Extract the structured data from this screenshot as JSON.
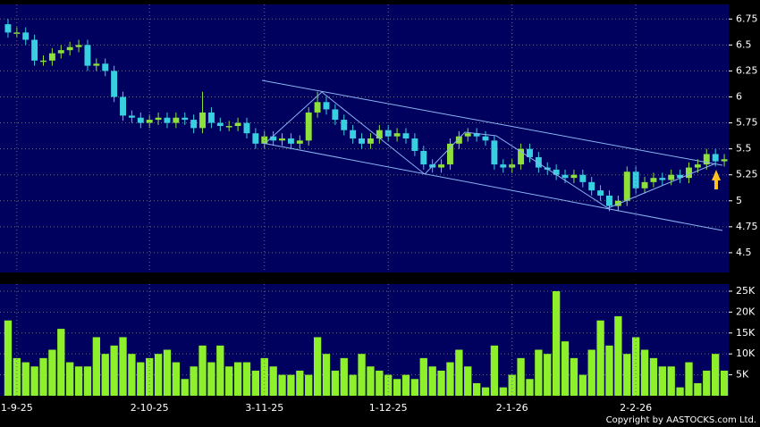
{
  "chart_data": [
    {
      "type": "candlestick",
      "up_color": "#8ee03a",
      "down_color": "#38d0e0",
      "ylim": [
        4.31,
        6.89
      ],
      "yticks": [
        4.5,
        4.75,
        5,
        5.25,
        5.5,
        5.75,
        6,
        6.25,
        6.5,
        6.75
      ],
      "grid": true,
      "open": [
        6.7,
        6.62,
        6.62,
        6.55,
        6.35,
        6.35,
        6.42,
        6.45,
        6.48,
        6.5,
        6.3,
        6.32,
        6.25,
        6.0,
        5.82,
        5.8,
        5.75,
        5.78,
        5.8,
        5.75,
        5.8,
        5.78,
        5.7,
        5.85,
        5.75,
        5.72,
        5.72,
        5.75,
        5.65,
        5.55,
        5.62,
        5.58,
        5.6,
        5.55,
        5.58,
        5.85,
        5.95,
        5.88,
        5.78,
        5.68,
        5.6,
        5.55,
        5.6,
        5.68,
        5.62,
        5.65,
        5.6,
        5.48,
        5.35,
        5.32,
        5.35,
        5.55,
        5.62,
        5.65,
        5.62,
        5.58,
        5.35,
        5.32,
        5.35,
        5.5,
        5.42,
        5.32,
        5.3,
        5.25,
        5.22,
        5.25,
        5.18,
        5.1,
        5.05,
        4.95,
        5.0,
        5.28,
        5.12,
        5.18,
        5.22,
        5.2,
        5.25,
        5.22,
        5.32,
        5.35,
        5.45,
        5.38
      ],
      "high": [
        6.75,
        6.67,
        6.67,
        6.6,
        6.4,
        6.47,
        6.5,
        6.53,
        6.55,
        6.55,
        6.37,
        6.37,
        6.3,
        6.05,
        5.87,
        5.85,
        5.83,
        5.85,
        5.85,
        5.85,
        5.85,
        5.83,
        6.05,
        5.9,
        5.8,
        5.77,
        5.8,
        5.8,
        5.7,
        5.67,
        5.67,
        5.65,
        5.65,
        5.63,
        5.9,
        6.05,
        6.0,
        5.93,
        5.83,
        5.73,
        5.65,
        5.65,
        5.73,
        5.73,
        5.7,
        5.7,
        5.65,
        5.53,
        5.4,
        5.4,
        5.6,
        5.67,
        5.7,
        5.7,
        5.67,
        5.63,
        5.4,
        5.4,
        5.55,
        5.55,
        5.47,
        5.37,
        5.35,
        5.3,
        5.3,
        5.3,
        5.23,
        5.15,
        5.1,
        5.05,
        5.33,
        5.33,
        5.23,
        5.27,
        5.27,
        5.3,
        5.3,
        5.37,
        5.4,
        5.5,
        5.5,
        5.45
      ],
      "low": [
        6.57,
        6.57,
        6.5,
        6.3,
        6.3,
        6.3,
        6.37,
        6.4,
        6.43,
        6.25,
        6.25,
        6.2,
        5.95,
        5.77,
        5.75,
        5.7,
        5.7,
        5.73,
        5.7,
        5.7,
        5.73,
        5.65,
        5.65,
        5.7,
        5.67,
        5.67,
        5.67,
        5.6,
        5.5,
        5.5,
        5.53,
        5.53,
        5.5,
        5.5,
        5.53,
        5.8,
        5.83,
        5.73,
        5.63,
        5.55,
        5.5,
        5.5,
        5.55,
        5.57,
        5.57,
        5.55,
        5.43,
        5.3,
        5.27,
        5.27,
        5.3,
        5.5,
        5.57,
        5.57,
        5.53,
        5.3,
        5.27,
        5.27,
        5.3,
        5.37,
        5.27,
        5.25,
        5.2,
        5.17,
        5.17,
        5.13,
        5.05,
        5.0,
        4.9,
        4.9,
        4.95,
        5.07,
        5.07,
        5.13,
        5.15,
        5.15,
        5.17,
        5.17,
        5.27,
        5.3,
        5.33,
        5.33
      ],
      "close": [
        6.62,
        6.62,
        6.55,
        6.35,
        6.35,
        6.42,
        6.45,
        6.48,
        6.5,
        6.3,
        6.32,
        6.25,
        6.0,
        5.82,
        5.8,
        5.75,
        5.78,
        5.8,
        5.75,
        5.8,
        5.78,
        5.7,
        5.85,
        5.75,
        5.72,
        5.72,
        5.75,
        5.65,
        5.55,
        5.62,
        5.58,
        5.6,
        5.55,
        5.58,
        5.85,
        5.95,
        5.88,
        5.78,
        5.68,
        5.6,
        5.55,
        5.6,
        5.68,
        5.62,
        5.65,
        5.6,
        5.48,
        5.35,
        5.32,
        5.35,
        5.55,
        5.62,
        5.65,
        5.62,
        5.58,
        5.35,
        5.32,
        5.35,
        5.5,
        5.42,
        5.32,
        5.3,
        5.25,
        5.22,
        5.25,
        5.18,
        5.1,
        5.05,
        4.95,
        5.0,
        5.28,
        5.12,
        5.18,
        5.22,
        5.2,
        5.25,
        5.22,
        5.32,
        5.35,
        5.45,
        5.38,
        5.4
      ]
    },
    {
      "type": "bar",
      "color": "#8ef02a",
      "ylim": [
        0,
        26700
      ],
      "grid": true,
      "yticks": [
        {
          "value": 5000,
          "label": "5K"
        },
        {
          "value": 10000,
          "label": "10K"
        },
        {
          "value": 15000,
          "label": "15K"
        },
        {
          "value": 20000,
          "label": "20K"
        },
        {
          "value": 25000,
          "label": "25K"
        }
      ],
      "categories": [
        null,
        "1-9-25",
        null,
        null,
        null,
        null,
        null,
        null,
        null,
        null,
        null,
        null,
        null,
        null,
        null,
        null,
        "2-10-25",
        null,
        null,
        null,
        null,
        null,
        null,
        null,
        null,
        null,
        null,
        null,
        null,
        "3-11-25",
        null,
        null,
        null,
        null,
        null,
        null,
        null,
        null,
        null,
        null,
        null,
        null,
        null,
        "1-12-25",
        null,
        null,
        null,
        null,
        null,
        null,
        null,
        null,
        null,
        null,
        null,
        null,
        null,
        "2-1-26",
        null,
        null,
        null,
        null,
        null,
        null,
        null,
        null,
        null,
        null,
        null,
        null,
        null,
        "2-2-26",
        null,
        null,
        null,
        null,
        null,
        null,
        null,
        null,
        null,
        null
      ],
      "values": [
        18000,
        9000,
        8000,
        7000,
        9000,
        11000,
        16000,
        8000,
        7000,
        7000,
        14000,
        10000,
        12000,
        14000,
        10000,
        8000,
        9000,
        10000,
        11000,
        8000,
        4000,
        7000,
        12000,
        8000,
        12000,
        7000,
        8000,
        8000,
        6000,
        9000,
        7000,
        5000,
        5000,
        6000,
        5000,
        14000,
        10000,
        6000,
        9000,
        5000,
        10000,
        7000,
        6000,
        5000,
        4000,
        5000,
        4000,
        9000,
        7000,
        6000,
        8000,
        11000,
        7000,
        3000,
        2000,
        12000,
        2000,
        5000,
        9000,
        4000,
        11000,
        10000,
        25000,
        13000,
        9000,
        5000,
        11000,
        18000,
        12000,
        19000,
        10000,
        14000,
        11000,
        9000,
        7000,
        7000,
        2000,
        8000,
        3000,
        6000,
        10000,
        6000
      ]
    }
  ],
  "copyright": "Copyright by AASTOCKS.com Ltd."
}
